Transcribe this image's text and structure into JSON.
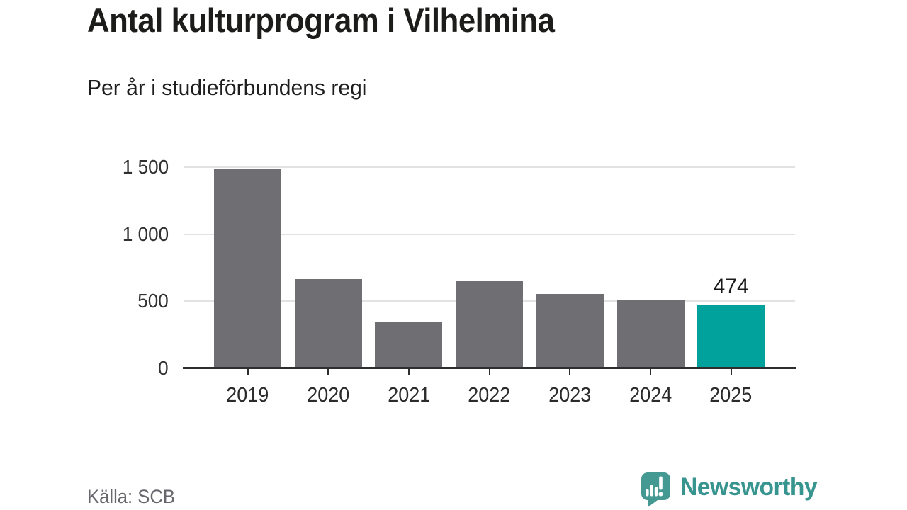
{
  "header": {
    "title": "Antal kulturprogram i Vilhelmina",
    "subtitle": "Per år i studieförbundens regi"
  },
  "chart_data": {
    "type": "bar",
    "title": "Antal kulturprogram i Vilhelmina",
    "subtitle": "Per år i studieförbundens regi",
    "categories": [
      "2019",
      "2020",
      "2021",
      "2022",
      "2023",
      "2024",
      "2025"
    ],
    "values": [
      1485,
      665,
      345,
      650,
      555,
      505,
      474
    ],
    "highlight_index": 6,
    "highlight_value_label": "474",
    "ylim": [
      0,
      1500
    ],
    "yticks": [
      0,
      500,
      1000,
      1500
    ],
    "ytick_labels": [
      "0",
      "500",
      "1 000",
      "1 500"
    ],
    "grid": "horizontal-gridlines-on",
    "legend": "none",
    "xlabel": "",
    "ylabel": ""
  },
  "colors": {
    "bar_default": "#6e6e73",
    "bar_highlight": "#00a29b",
    "gridline": "#e2e2e2",
    "axis": "#2e2e2e",
    "title_text": "#1c1c1a",
    "muted_text": "#66666c",
    "brand_teal": "#37948e",
    "logo_bubble_teal": "#449993"
  },
  "footer": {
    "source": "Källa: SCB",
    "brand": "Newsworthy"
  },
  "icons": {
    "brand_logo": "newsworthy-speech-bubble-bar-chart-icon"
  }
}
